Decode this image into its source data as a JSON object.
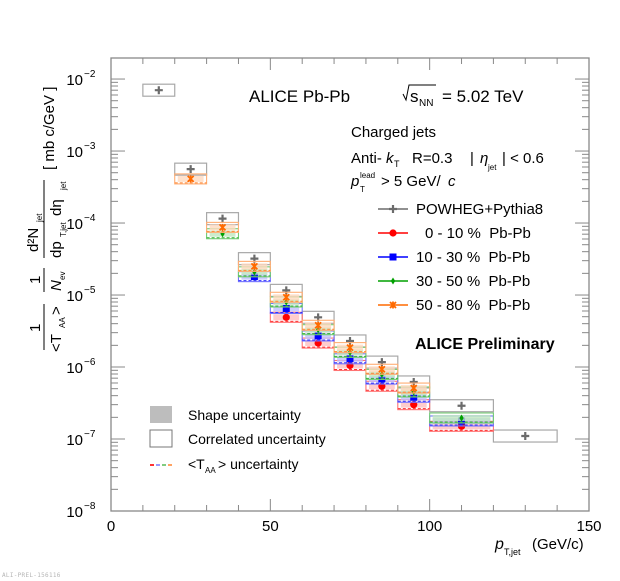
{
  "chart_data": {
    "type": "scatter",
    "title": "ALICE   Pb-Pb",
    "energy_label": {
      "prefix": "s",
      "sub": "NN",
      "suffix": "= 5.02 TeV"
    },
    "info_lines": {
      "line1": "Charged jets",
      "line2_a": "Anti-",
      "line2_k": "k",
      "line2_ksub": "T",
      "line2_b": "R=0.3",
      "line2_eta_bar": "|",
      "line2_eta": "η",
      "line2_eta_sub": "jet",
      "line2_c": "| < 0.6",
      "line3_p": "p",
      "line3_sup": "lead",
      "line3_sub": "T",
      "line3_rest": "> 5 GeV/",
      "line3_c": "c"
    },
    "preliminary": "ALICE Preliminary",
    "xlabel": {
      "main": "p",
      "sub": "T,jet",
      "unit": "(GeV/c)"
    },
    "ylabel": {
      "frac1_num": "1",
      "frac1_den": "<T",
      "frac1_den_sub": "AA",
      "frac1_den_end": ">",
      "frac2_num": "1",
      "frac2_den": "N",
      "frac2_den_sub": "ev",
      "frac3_num": "d²N",
      "frac3_num_sub": "jet",
      "frac3_den": "dp",
      "frac3_den_sub": "T,jet",
      "frac3_den_mid": " dη",
      "frac3_den_sub2": "jet",
      "unit": "[ mb c/GeV ]"
    },
    "xlim": [
      0,
      150
    ],
    "ylim": [
      1e-08,
      0.0196
    ],
    "yscale": "log",
    "x_ticks": [
      "0",
      "50",
      "100",
      "150"
    ],
    "x_tick_values": [
      0,
      50,
      100,
      150
    ],
    "y_ticks": [
      {
        "value": 0.01,
        "base": "10",
        "exp": "−2"
      },
      {
        "value": 0.001,
        "base": "10",
        "exp": "−3"
      },
      {
        "value": 0.0001,
        "base": "10",
        "exp": "−4"
      },
      {
        "value": 1e-05,
        "base": "10",
        "exp": "−5"
      },
      {
        "value": 1e-06,
        "base": "10",
        "exp": "−6"
      },
      {
        "value": 1e-07,
        "base": "10",
        "exp": "−7"
      },
      {
        "value": 1e-08,
        "base": "10",
        "exp": "−8"
      }
    ],
    "grid": false,
    "legend_position": "right",
    "series": [
      {
        "name": "POWHEG+Pythia8",
        "color": "#6b6b6b",
        "marker": "cross",
        "bins": [
          {
            "x": 15,
            "xlo": 10,
            "xhi": 20,
            "y": 0.007
          },
          {
            "x": 25,
            "xlo": 20,
            "xhi": 30,
            "y": 0.00056
          },
          {
            "x": 35,
            "xlo": 30,
            "xhi": 40,
            "y": 0.000115
          },
          {
            "x": 45,
            "xlo": 40,
            "xhi": 50,
            "y": 3.2e-05
          },
          {
            "x": 55,
            "xlo": 50,
            "xhi": 60,
            "y": 1.16e-05
          },
          {
            "x": 65,
            "xlo": 60,
            "xhi": 70,
            "y": 4.9e-06
          },
          {
            "x": 75,
            "xlo": 70,
            "xhi": 80,
            "y": 2.3e-06
          },
          {
            "x": 85,
            "xlo": 80,
            "xhi": 90,
            "y": 1.17e-06
          },
          {
            "x": 95,
            "xlo": 90,
            "xhi": 100,
            "y": 6.2e-07
          },
          {
            "x": 110,
            "xlo": 100,
            "xhi": 120,
            "y": 2.9e-07
          },
          {
            "x": 130,
            "xlo": 120,
            "xhi": 140,
            "y": 1.1e-07
          }
        ]
      },
      {
        "name": "0 - 10 %  Pb-Pb",
        "color": "#ff0000",
        "marker": "circle",
        "bins": [
          {
            "x": 55,
            "xlo": 50,
            "xhi": 60,
            "y": 4.9e-06
          },
          {
            "x": 65,
            "xlo": 60,
            "xhi": 70,
            "y": 2.15e-06
          },
          {
            "x": 75,
            "xlo": 70,
            "xhi": 80,
            "y": 1.05e-06
          },
          {
            "x": 85,
            "xlo": 80,
            "xhi": 90,
            "y": 5.4e-07
          },
          {
            "x": 95,
            "xlo": 90,
            "xhi": 100,
            "y": 3e-07
          },
          {
            "x": 110,
            "xlo": 100,
            "xhi": 120,
            "y": 1.5e-07
          }
        ]
      },
      {
        "name": "10 - 30 %  Pb-Pb",
        "color": "#0000ff",
        "marker": "square",
        "bins": [
          {
            "x": 45,
            "xlo": 40,
            "xhi": 50,
            "y": 1.8e-05
          },
          {
            "x": 55,
            "xlo": 50,
            "xhi": 60,
            "y": 6.5e-06
          },
          {
            "x": 65,
            "xlo": 60,
            "xhi": 70,
            "y": 2.7e-06
          },
          {
            "x": 75,
            "xlo": 70,
            "xhi": 80,
            "y": 1.3e-06
          },
          {
            "x": 85,
            "xlo": 80,
            "xhi": 90,
            "y": 6.8e-07
          },
          {
            "x": 95,
            "xlo": 90,
            "xhi": 100,
            "y": 3.8e-07
          },
          {
            "x": 110,
            "xlo": 100,
            "xhi": 120,
            "y": 1.78e-07
          }
        ]
      },
      {
        "name": "30 - 50 %  Pb-Pb",
        "color": "#00a000",
        "marker": "diamond",
        "bins": [
          {
            "x": 35,
            "xlo": 30,
            "xhi": 40,
            "y": 7.1e-05
          },
          {
            "x": 45,
            "xlo": 40,
            "xhi": 50,
            "y": 2.1e-05
          },
          {
            "x": 55,
            "xlo": 50,
            "xhi": 60,
            "y": 8e-06
          },
          {
            "x": 65,
            "xlo": 60,
            "xhi": 70,
            "y": 3.3e-06
          },
          {
            "x": 75,
            "xlo": 70,
            "xhi": 80,
            "y": 1.6e-06
          },
          {
            "x": 85,
            "xlo": 80,
            "xhi": 90,
            "y": 7.9e-07
          },
          {
            "x": 95,
            "xlo": 90,
            "xhi": 100,
            "y": 4.5e-07
          },
          {
            "x": 110,
            "xlo": 100,
            "xhi": 120,
            "y": 1.96e-07
          }
        ]
      },
      {
        "name": "50 - 80 %  Pb-Pb",
        "color": "#ff6a00",
        "marker": "star",
        "bins": [
          {
            "x": 25,
            "xlo": 20,
            "xhi": 30,
            "y": 0.00041
          },
          {
            "x": 35,
            "xlo": 30,
            "xhi": 40,
            "y": 8.7e-05
          },
          {
            "x": 45,
            "xlo": 40,
            "xhi": 50,
            "y": 2.5e-05
          },
          {
            "x": 55,
            "xlo": 50,
            "xhi": 60,
            "y": 9.3e-06
          },
          {
            "x": 65,
            "xlo": 60,
            "xhi": 70,
            "y": 3.8e-06
          },
          {
            "x": 75,
            "xlo": 70,
            "xhi": 80,
            "y": 1.86e-06
          },
          {
            "x": 85,
            "xlo": 80,
            "xhi": 90,
            "y": 9.3e-07
          },
          {
            "x": 95,
            "xlo": 90,
            "xhi": 100,
            "y": 5.1e-07
          }
        ]
      }
    ],
    "uncertainty_legend": [
      {
        "name": "Shape uncertainty",
        "style": "filled-gray"
      },
      {
        "name": "Correlated uncertainty",
        "style": "open-box"
      },
      {
        "name_pre": "<T",
        "name_sub": "AA",
        "name_post": "> uncertainty",
        "style": "dashed-multicolor"
      }
    ],
    "taa_dash_colors": [
      "#ff0000",
      "#8080ff",
      "#60c060",
      "#ff8c3c"
    ]
  },
  "footer": "ALI-PREL-156116"
}
